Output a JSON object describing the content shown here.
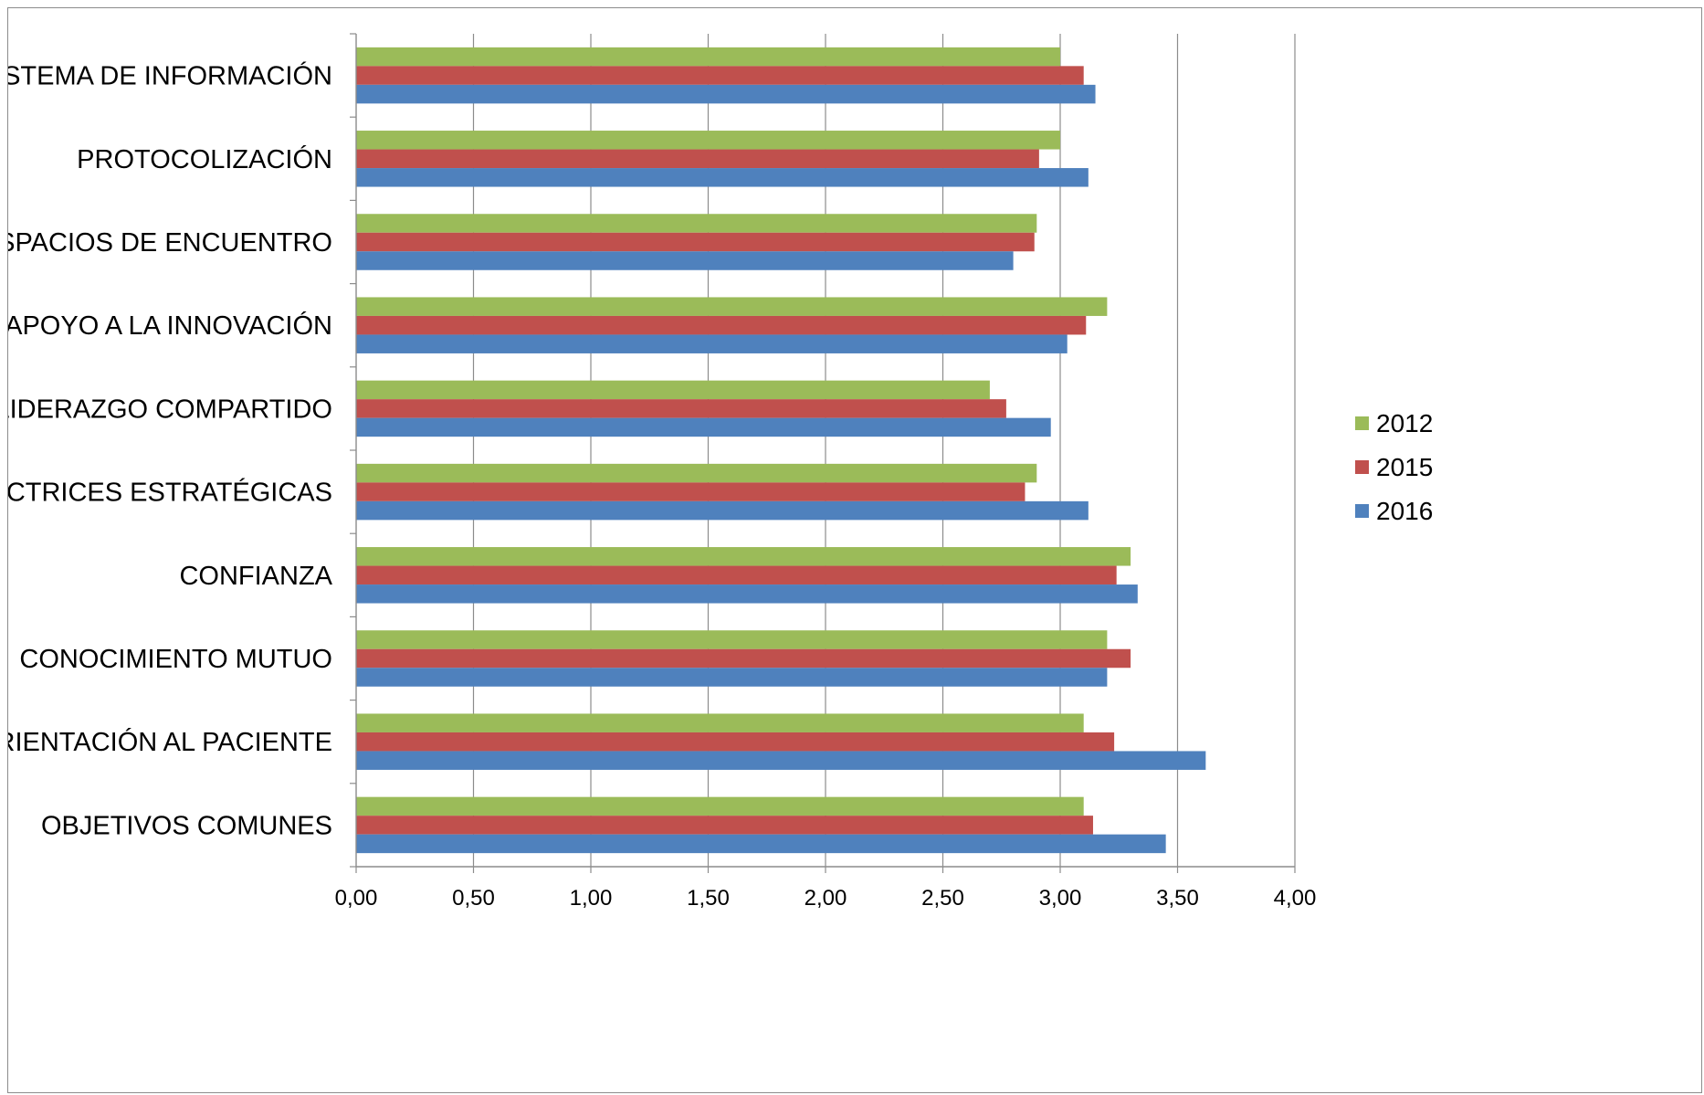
{
  "chart_data": {
    "type": "bar",
    "orientation": "horizontal",
    "title": "",
    "xlabel": "",
    "ylabel": "",
    "categories": [
      "SISTEMA DE INFORMACIÓN",
      "PROTOCOLIZACIÓN",
      "ESPACIOS DE ENCUENTRO",
      "APOYO A LA INNOVACIÓN",
      "LIDERAZGO COMPARTIDO",
      "DIRECTRICES ESTRATÉGICAS",
      "CONFIANZA",
      "CONOCIMIENTO MUTUO",
      "ORIENTACIÓN AL PACIENTE",
      "OBJETIVOS COMUNES"
    ],
    "series": [
      {
        "name": "2012",
        "color": "#9BBB59",
        "values": [
          3.0,
          3.0,
          2.9,
          3.2,
          2.7,
          2.9,
          3.3,
          3.2,
          3.1,
          3.1
        ]
      },
      {
        "name": "2015",
        "color": "#C0504D",
        "values": [
          3.1,
          2.91,
          2.89,
          3.11,
          2.77,
          2.85,
          3.24,
          3.3,
          3.23,
          3.14
        ]
      },
      {
        "name": "2016",
        "color": "#4F81BD",
        "values": [
          3.15,
          3.12,
          2.8,
          3.03,
          2.96,
          3.12,
          3.33,
          3.2,
          3.62,
          3.45
        ]
      }
    ],
    "xlim": [
      0,
      4
    ],
    "x_ticks": [
      "0,00",
      "0,50",
      "1,00",
      "1,50",
      "2,00",
      "2,50",
      "3,00",
      "3,50",
      "4,00"
    ],
    "grid": "vertical",
    "legend": "right"
  }
}
